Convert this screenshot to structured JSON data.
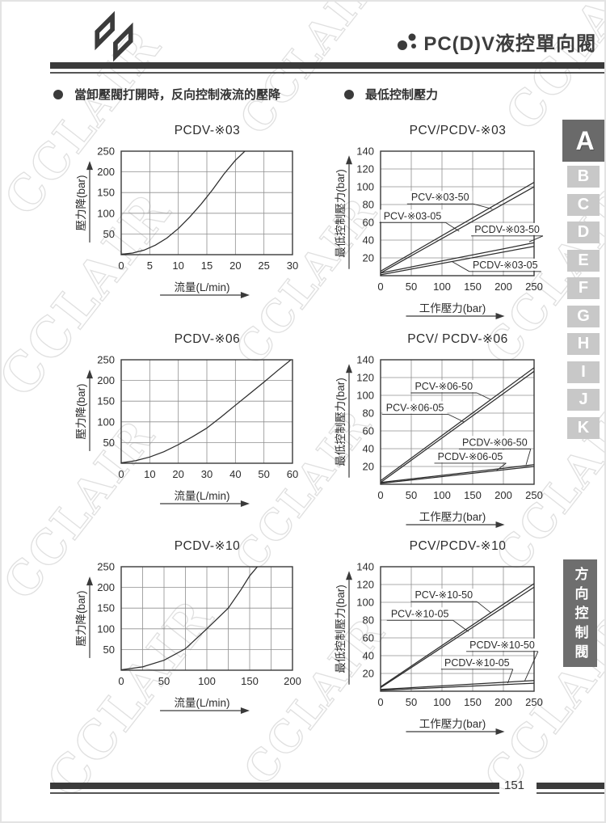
{
  "header": {
    "title": "PC(D)V液控單向閥"
  },
  "sections": {
    "left_title": "當卸壓閥打開時，反向控制液流的壓降",
    "right_title": "最低控制壓力"
  },
  "sidebar": {
    "tabs": [
      "A",
      "B",
      "C",
      "D",
      "E",
      "F",
      "G",
      "H",
      "I",
      "J",
      "K"
    ],
    "active": "A",
    "category_label": "方向控制閥"
  },
  "footer": {
    "page_number": "151"
  },
  "watermark": {
    "text": "CCLAIR"
  },
  "chart_data": [
    {
      "type": "line",
      "layout": "flow",
      "title": "PCDV-※03",
      "xlabel": "流量(L/min)",
      "ylabel": "壓力降(bar)",
      "xlim": [
        0,
        30
      ],
      "ylim": [
        0,
        250
      ],
      "xticks": [
        0,
        5,
        10,
        15,
        20,
        25,
        30
      ],
      "yticks": [
        50,
        100,
        150,
        200,
        250
      ],
      "grid": "on",
      "series": [
        {
          "name": "PCDV-※03",
          "x": [
            0,
            2,
            4,
            6,
            8,
            10,
            12,
            14,
            16,
            18,
            20,
            21.8
          ],
          "y": [
            1,
            4,
            11,
            23,
            40,
            63,
            91,
            122,
            157,
            195,
            228,
            252
          ]
        }
      ]
    },
    {
      "type": "line",
      "layout": "ctrl",
      "title": "PCV/PCDV-※03",
      "xlabel": "工作壓力(bar)",
      "ylabel": "最低控制壓力(bar)",
      "xlim": [
        0,
        250
      ],
      "ylim": [
        0,
        140
      ],
      "xticks": [
        0,
        50,
        100,
        150,
        200,
        250
      ],
      "yticks": [
        20,
        40,
        60,
        80,
        100,
        120,
        140
      ],
      "grid": "on",
      "series": [
        {
          "name": "PCV-※03-50",
          "x": [
            0,
            250
          ],
          "y": [
            5,
            105
          ]
        },
        {
          "name": "PCV-※03-05",
          "x": [
            0,
            250
          ],
          "y": [
            3,
            100
          ]
        },
        {
          "name": "PCDV-※03-50",
          "x": [
            0,
            250
          ],
          "y": [
            3,
            37
          ]
        },
        {
          "name": "PCDV-※03-05",
          "x": [
            0,
            250
          ],
          "y": [
            1,
            33
          ]
        }
      ],
      "labels": [
        {
          "text": "PCV-※03-50",
          "lx": 97,
          "ly": 88,
          "ax": 182,
          "ay": 75,
          "side": "right"
        },
        {
          "text": "PCV-※03-05",
          "lx": 52,
          "ly": 67,
          "ax": 128,
          "ay": 50,
          "side": "right"
        },
        {
          "text": "PCDV-※03-50",
          "lx": 206,
          "ly": 52,
          "ax": 242,
          "ay": 38,
          "side": "right"
        },
        {
          "text": "PCDV-※03-05",
          "lx": 203,
          "ly": 12,
          "ax": 116,
          "ay": 16,
          "side": "left"
        }
      ]
    },
    {
      "type": "line",
      "layout": "flow",
      "title": "PCDV-※06",
      "xlabel": "流量(L/min)",
      "ylabel": "壓力降(bar)",
      "xlim": [
        0,
        60
      ],
      "ylim": [
        0,
        250
      ],
      "xticks": [
        0,
        10,
        20,
        30,
        40,
        50,
        60
      ],
      "yticks": [
        50,
        100,
        150,
        200,
        250
      ],
      "grid": "on",
      "series": [
        {
          "name": "PCDV-※06",
          "x": [
            0,
            5,
            10,
            15,
            20,
            25,
            30,
            35,
            40,
            45,
            50,
            55,
            60
          ],
          "y": [
            1,
            6,
            15,
            28,
            45,
            64,
            85,
            112,
            140,
            168,
            196,
            225,
            253
          ]
        }
      ]
    },
    {
      "type": "line",
      "layout": "ctrl",
      "title": "PCV/ PCDV-※06",
      "xlabel": "工作壓力(bar)",
      "ylabel": "最低控制壓力(bar)",
      "xlim": [
        0,
        250
      ],
      "ylim": [
        0,
        140
      ],
      "xticks": [
        0,
        50,
        100,
        150,
        200,
        250
      ],
      "yticks": [
        20,
        40,
        60,
        80,
        100,
        120,
        140
      ],
      "grid": "on",
      "series": [
        {
          "name": "PCV-※06-50",
          "x": [
            0,
            250
          ],
          "y": [
            4,
            131
          ]
        },
        {
          "name": "PCV-※06-05",
          "x": [
            0,
            250
          ],
          "y": [
            2,
            127
          ]
        },
        {
          "name": "PCDV-※06-50",
          "x": [
            0,
            250
          ],
          "y": [
            2,
            22
          ]
        },
        {
          "name": "PCDV-※06-05",
          "x": [
            0,
            250
          ],
          "y": [
            1,
            20
          ]
        }
      ],
      "labels": [
        {
          "text": "PCV-※06-50",
          "lx": 103,
          "ly": 110,
          "ax": 180,
          "ay": 95,
          "side": "right"
        },
        {
          "text": "PCV-※06-05",
          "lx": 56,
          "ly": 86,
          "ax": 136,
          "ay": 70,
          "side": "right"
        },
        {
          "text": "PCDV-※06-50",
          "lx": 186,
          "ly": 47,
          "ax": 237,
          "ay": 22,
          "side": "right"
        },
        {
          "text": "PCDV-※06-05",
          "lx": 146,
          "ly": 31,
          "ax": 188,
          "ay": 15,
          "side": "right"
        }
      ]
    },
    {
      "type": "line",
      "layout": "flow",
      "title": "PCDV-※10",
      "xlabel": "流量(L/min)",
      "ylabel": "壓力降(bar)",
      "xlim": [
        0,
        200
      ],
      "ylim": [
        0,
        250
      ],
      "xticks": [
        0,
        50,
        100,
        150,
        200
      ],
      "xgrid": [
        25,
        50,
        75,
        100,
        125,
        150,
        175,
        200
      ],
      "yticks": [
        50,
        100,
        150,
        200,
        250
      ],
      "grid": "on",
      "series": [
        {
          "name": "PCDV-※10",
          "x": [
            0,
            25,
            50,
            75,
            100,
            125,
            140,
            150,
            161
          ],
          "y": [
            1,
            8,
            24,
            52,
            100,
            150,
            195,
            228,
            255
          ]
        }
      ]
    },
    {
      "type": "line",
      "layout": "ctrl",
      "title": "PCV/PCDV-※10",
      "xlabel": "工作壓力(bar)",
      "ylabel": "最低控制壓力(bar)",
      "xlim": [
        0,
        250
      ],
      "ylim": [
        0,
        140
      ],
      "xticks": [
        0,
        50,
        100,
        150,
        200,
        250
      ],
      "yticks": [
        20,
        40,
        60,
        80,
        100,
        120,
        140
      ],
      "grid": "on",
      "series": [
        {
          "name": "PCV-※10-50",
          "x": [
            0,
            250
          ],
          "y": [
            5,
            121
          ]
        },
        {
          "name": "PCV-※10-05",
          "x": [
            0,
            250
          ],
          "y": [
            4,
            117
          ]
        },
        {
          "name": "PCDV-※10-50",
          "x": [
            0,
            250
          ],
          "y": [
            2,
            12
          ]
        },
        {
          "name": "PCDV-※10-05",
          "x": [
            0,
            250
          ],
          "y": [
            1,
            9
          ]
        }
      ],
      "labels": [
        {
          "text": "PCV-※10-50",
          "lx": 103,
          "ly": 108,
          "ax": 180,
          "ay": 88,
          "side": "right"
        },
        {
          "text": "PCV-※10-05",
          "lx": 64,
          "ly": 87,
          "ax": 143,
          "ay": 67,
          "side": "right"
        },
        {
          "text": "PCDV-※10-50",
          "lx": 198,
          "ly": 52,
          "ax": 235,
          "ay": 12,
          "side": "right"
        },
        {
          "text": "PCDV-※10-05",
          "lx": 157,
          "ly": 32,
          "ax": 207,
          "ay": 9,
          "side": "right"
        }
      ]
    }
  ]
}
